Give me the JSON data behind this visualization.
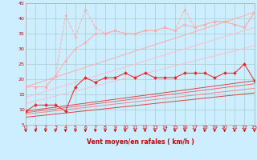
{
  "xlabel": "Vent moyen/en rafales ( km/h )",
  "xlim": [
    0,
    23
  ],
  "ylim": [
    5,
    45
  ],
  "yticks": [
    5,
    10,
    15,
    20,
    25,
    30,
    35,
    40,
    45
  ],
  "xticks": [
    0,
    1,
    2,
    3,
    4,
    5,
    6,
    7,
    8,
    9,
    10,
    11,
    12,
    13,
    14,
    15,
    16,
    17,
    18,
    19,
    20,
    21,
    22,
    23
  ],
  "bg_color": "#cceeff",
  "grid_color": "#aacccc",
  "line_pink_smooth_y": [
    17.5,
    17.5,
    17.5,
    21,
    26,
    30,
    32,
    35,
    35,
    36,
    35,
    35,
    36,
    36,
    37,
    36,
    38,
    37,
    38,
    39,
    39,
    38,
    37,
    42
  ],
  "line_pink_peak_y": [
    17.5,
    17.5,
    17.5,
    21,
    41,
    34,
    43,
    37,
    35,
    36,
    35,
    35,
    36,
    36,
    37,
    36,
    43,
    37,
    38,
    39,
    39,
    38,
    37,
    42
  ],
  "line_trend1": [
    17.5,
    42
  ],
  "line_trend2": [
    14.0,
    37
  ],
  "line_trend3": [
    12.0,
    31
  ],
  "line_red_y": [
    9.5,
    11.5,
    11.5,
    11.5,
    9.5,
    17.5,
    20.5,
    19,
    20.5,
    20.5,
    22,
    20.5,
    22,
    20.5,
    20.5,
    20.5,
    22,
    22,
    22,
    20.5,
    22,
    22,
    25,
    19.5
  ],
  "line_redtrend1": [
    9.5,
    19.5
  ],
  "line_redtrend2": [
    9.0,
    18.5
  ],
  "line_redtrend3": [
    8.5,
    17.0
  ],
  "line_redtrend4": [
    7.5,
    15.5
  ],
  "color_pink_light": "#ffaaaa",
  "color_pink_trend": "#ffbbcc",
  "color_red": "#ee2222",
  "color_red_trend": "#dd4444",
  "color_red_trend2": "#ee6666",
  "color_red_trend3": "#ee8888",
  "color_red_trend4": "#dd4444",
  "color_label": "#cc0000",
  "arrow_color": "#cc0000"
}
